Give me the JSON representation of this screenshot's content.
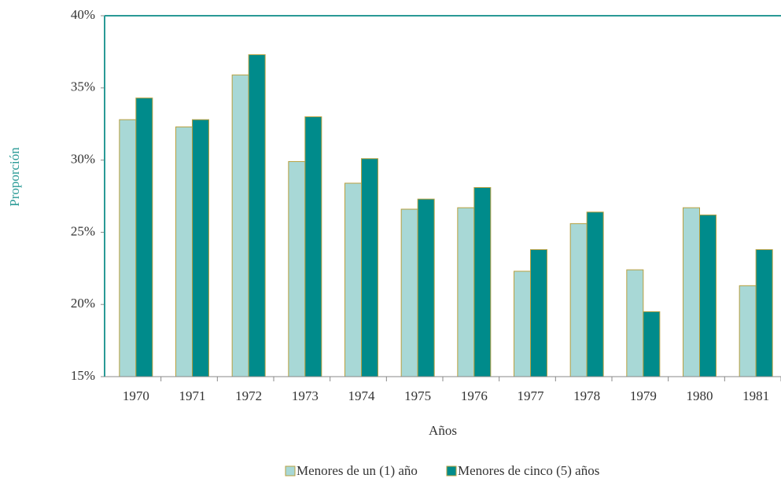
{
  "chart_data": {
    "type": "bar",
    "x_label": "Años",
    "y_label": "Proporción",
    "categories": [
      "1970",
      "1971",
      "1972",
      "1973",
      "1974",
      "1975",
      "1976",
      "1977",
      "1978",
      "1979",
      "1980",
      "1981"
    ],
    "series": [
      {
        "name": "Menores de un (1) año",
        "color": "#a8d8d6",
        "values": [
          32.8,
          32.3,
          35.9,
          29.9,
          28.4,
          26.6,
          26.7,
          22.3,
          25.6,
          22.4,
          26.7,
          21.3
        ]
      },
      {
        "name": "Menores de cinco (5) años",
        "color": "#008b8b",
        "values": [
          34.3,
          32.8,
          37.3,
          33.0,
          30.1,
          27.3,
          28.1,
          23.8,
          26.4,
          19.5,
          26.2,
          23.8
        ]
      }
    ],
    "ylim": [
      15,
      40
    ],
    "yticks": [
      {
        "value": 15,
        "label": "15%"
      },
      {
        "value": 20,
        "label": "20%"
      },
      {
        "value": 25,
        "label": "25%"
      },
      {
        "value": 30,
        "label": "30%"
      },
      {
        "value": 35,
        "label": "35%"
      },
      {
        "value": 40,
        "label": "40%"
      }
    ],
    "grid": false,
    "legend": "bottom"
  }
}
